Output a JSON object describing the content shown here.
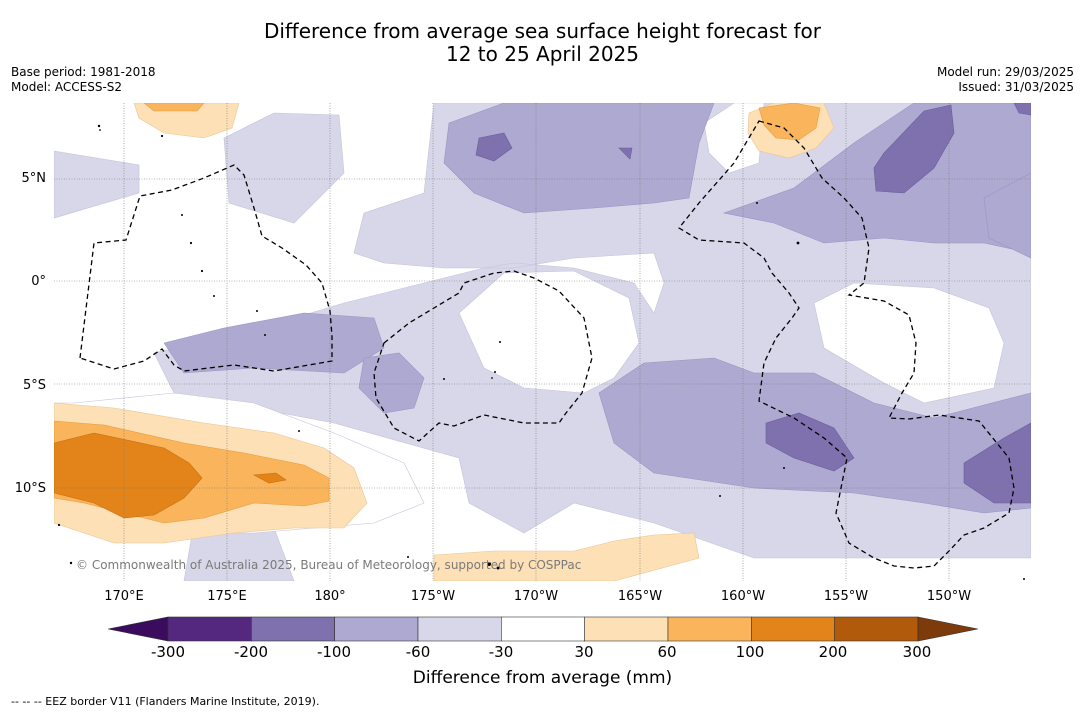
{
  "title_line1": "Difference from average sea surface height forecast for",
  "title_line2": "12 to 25 April 2025",
  "meta": {
    "base_period": "Base period: 1981-2018",
    "model": "Model: ACCESS-S2",
    "model_run": "Model run: 29/03/2025",
    "issued": "Issued: 31/03/2025"
  },
  "lat_labels": [
    "5°N",
    "0°",
    "5°S",
    "10°S"
  ],
  "lon_labels": [
    "170°E",
    "175°E",
    "180°",
    "175°W",
    "170°W",
    "165°W",
    "160°W",
    "155°W",
    "150°W"
  ],
  "colorbar": {
    "ticks": [
      "-300",
      "-200",
      "-100",
      "-60",
      "-30",
      "30",
      "60",
      "100",
      "200",
      "300"
    ],
    "colors": [
      "#3b0b5e",
      "#54287f",
      "#7e71ad",
      "#aea9d0",
      "#d7d7e9",
      "#ffffff",
      "#fde0b5",
      "#f9b45c",
      "#e2841a",
      "#b15a0b",
      "#7d3a0a"
    ],
    "title": "Difference from average (mm)"
  },
  "credit": "© Commonwealth of Australia 2025, Bureau of Meteorology, supported by COSPPac",
  "legend_line": "-- -- -- EEZ border V11 (Flanders Marine Institute, 2019)."
}
